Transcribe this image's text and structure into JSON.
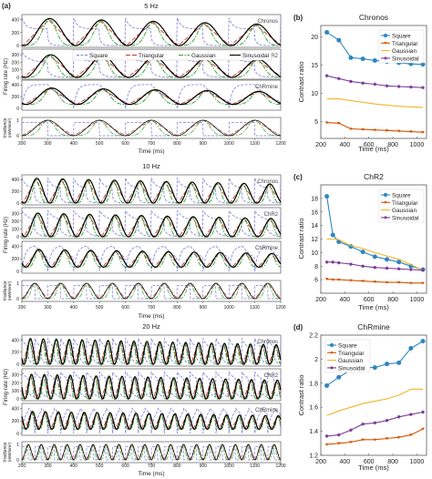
{
  "chart_data": [
    {
      "type": "line",
      "panel": "(a)",
      "titles": [
        "5 Hz",
        "10 Hz",
        "20 Hz"
      ],
      "ylabel_rate": "Firing rate (Hz)",
      "ylabel_irr": "Irradiance (mW/mm²)",
      "xlabel": "Time (ms)",
      "xticks": [
        200,
        300,
        400,
        500,
        600,
        700,
        800,
        900,
        1000,
        1100,
        1200
      ],
      "xlim": [
        200,
        1200
      ],
      "rate_yticks": [
        0,
        200,
        400
      ],
      "rate_yticks_chr2": [
        0,
        100,
        200,
        300
      ],
      "irr_yticks": [
        0,
        1
      ],
      "opsin_labels": [
        "Chronos",
        "ChR2",
        "ChRmine"
      ],
      "frequencies_hz": [
        5,
        10,
        20
      ],
      "legend": [
        "Square",
        "Triangular",
        "Gaussian",
        "Sinusoidal"
      ],
      "colors": {
        "Square": "#7b7bd6",
        "Triangular": "#c0392b",
        "Gaussian": "#2ca02c",
        "Sinusoidal": "#000000"
      }
    },
    {
      "type": "line",
      "panel": "(b)",
      "title": "Chronos",
      "xlabel": "Time (ms)",
      "ylabel": "Contrast ratio",
      "x": [
        250,
        350,
        450,
        550,
        650,
        750,
        850,
        950,
        1050
      ],
      "xticks": [
        200,
        400,
        600,
        800,
        1000
      ],
      "xlim": [
        200,
        1080
      ],
      "ylim": [
        2,
        22
      ],
      "yticks": [
        5,
        10,
        15,
        20
      ],
      "legend_position": "top-right",
      "series": [
        {
          "name": "Square",
          "color": "#2e86c1",
          "marker": "circle",
          "values": [
            20.8,
            19.4,
            16.3,
            16.1,
            15.8,
            15.6,
            15.4,
            15.2,
            15.1
          ]
        },
        {
          "name": "Triangular",
          "color": "#d35400",
          "marker": "triangle",
          "values": [
            4.8,
            4.7,
            3.7,
            3.6,
            3.5,
            3.4,
            3.3,
            3.2,
            3.1
          ]
        },
        {
          "name": "Gaussian",
          "color": "#f0b428",
          "marker": "none",
          "values": [
            9.0,
            9.0,
            8.7,
            8.4,
            8.1,
            7.9,
            7.7,
            7.6,
            7.5
          ]
        },
        {
          "name": "Sinusoidal",
          "color": "#7d3c98",
          "marker": "star",
          "values": [
            13.1,
            12.6,
            12.1,
            11.8,
            11.6,
            11.3,
            11.2,
            11.1,
            11.0
          ]
        }
      ]
    },
    {
      "type": "line",
      "panel": "(c)",
      "title": "ChR2",
      "xlabel": "Time (ms)",
      "ylabel": "Contrast ratio",
      "x": [
        250,
        300,
        350,
        450,
        550,
        650,
        750,
        850,
        950,
        1050
      ],
      "xticks": [
        200,
        400,
        600,
        800,
        1000
      ],
      "xlim": [
        200,
        1080
      ],
      "ylim": [
        4,
        20
      ],
      "yticks": [
        6,
        8,
        10,
        12,
        14,
        16,
        18
      ],
      "legend_position": "top-right",
      "series": [
        {
          "name": "Square",
          "color": "#2e86c1",
          "marker": "circle",
          "values": [
            18.3,
            12.6,
            11.6,
            10.9,
            10.1,
            9.4,
            9.0,
            8.6,
            8.0,
            7.5
          ]
        },
        {
          "name": "Triangular",
          "color": "#d35400",
          "marker": "triangle",
          "values": [
            6.1,
            6.0,
            6.0,
            5.9,
            5.8,
            5.7,
            5.6,
            5.6,
            5.5,
            5.5
          ]
        },
        {
          "name": "Gaussian",
          "color": "#f0b428",
          "marker": "none",
          "values": [
            12.0,
            12.0,
            11.9,
            11.0,
            10.6,
            10.0,
            9.5,
            9.0,
            8.2,
            7.4
          ]
        },
        {
          "name": "Sinusoidal",
          "color": "#7d3c98",
          "marker": "star",
          "values": [
            8.6,
            8.6,
            8.5,
            8.3,
            8.0,
            7.8,
            7.7,
            7.6,
            7.5,
            7.4
          ]
        }
      ]
    },
    {
      "type": "line",
      "panel": "(d)",
      "title": "ChRmine",
      "xlabel": "Time (ms)",
      "ylabel": "Contrast ratio",
      "x": [
        250,
        350,
        450,
        550,
        650,
        750,
        850,
        950,
        1050
      ],
      "xticks": [
        200,
        400,
        600,
        800,
        1000
      ],
      "xlim": [
        200,
        1080
      ],
      "ylim": [
        1.2,
        2.2
      ],
      "yticks": [
        1.2,
        1.4,
        1.6,
        1.8,
        2.0,
        2.2
      ],
      "ytick_labels": [
        "1.2",
        "1.4",
        "1.6",
        "1.8",
        "2",
        "2.2"
      ],
      "legend_position": "top-left",
      "series": [
        {
          "name": "Square",
          "color": "#2e86c1",
          "marker": "circle",
          "values": [
            1.78,
            1.85,
            1.91,
            1.93,
            1.93,
            1.96,
            1.97,
            2.09,
            2.15
          ]
        },
        {
          "name": "Triangular",
          "color": "#d35400",
          "marker": "triangle",
          "values": [
            1.29,
            1.3,
            1.31,
            1.33,
            1.33,
            1.34,
            1.35,
            1.37,
            1.42
          ]
        },
        {
          "name": "Gaussian",
          "color": "#f0b428",
          "marker": "none",
          "values": [
            1.53,
            1.57,
            1.6,
            1.63,
            1.65,
            1.67,
            1.7,
            1.75,
            1.75
          ]
        },
        {
          "name": "Sinusoidal",
          "color": "#7d3c98",
          "marker": "star",
          "values": [
            1.36,
            1.37,
            1.41,
            1.46,
            1.47,
            1.49,
            1.52,
            1.54,
            1.56
          ]
        }
      ]
    }
  ]
}
